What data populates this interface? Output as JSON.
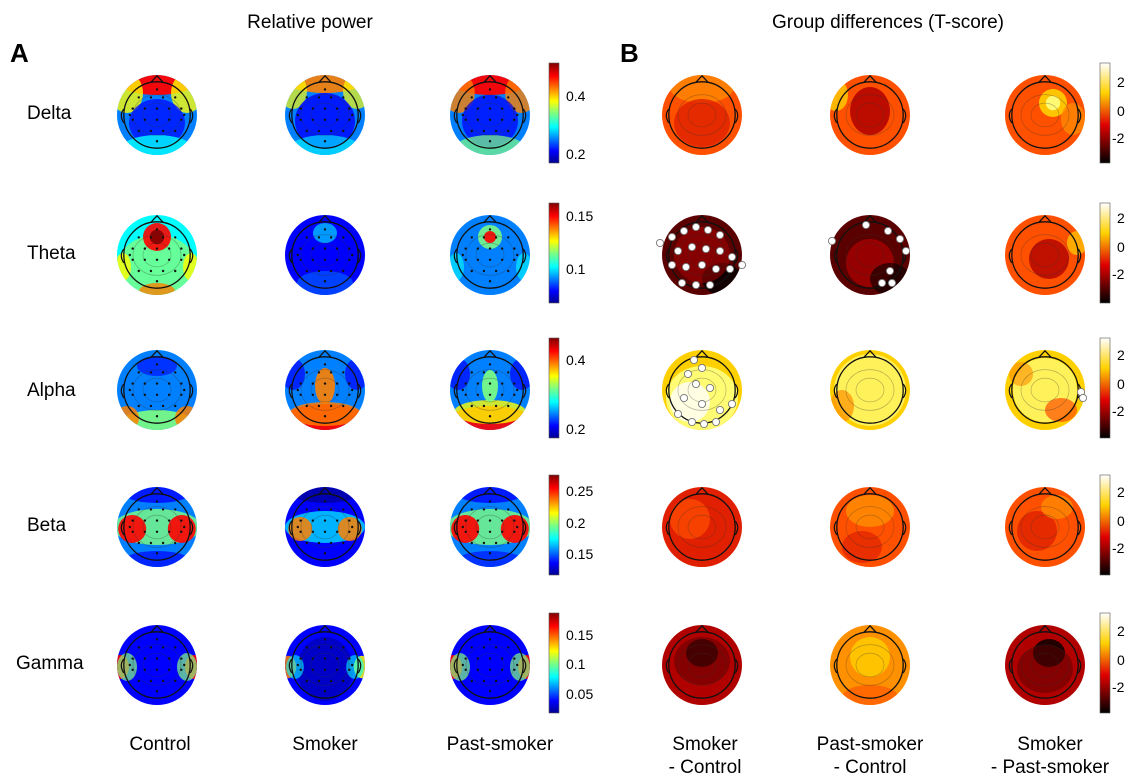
{
  "panel_a": {
    "letter": "A",
    "title": "Relative power",
    "columns": [
      "Control",
      "Smoker",
      "Past-smoker"
    ]
  },
  "panel_b": {
    "letter": "B",
    "title": "Group differences (T-score)",
    "columns": [
      {
        "line1": "Smoker",
        "line2": "- Control"
      },
      {
        "line1": "Past-smoker",
        "line2": "- Control"
      },
      {
        "line1": "Smoker",
        "line2": "- Past-smoker"
      }
    ],
    "colorbar_ticks": [
      "2",
      "0",
      "-2"
    ]
  },
  "rows": [
    {
      "band": "Delta",
      "colorbar_ticks": [
        "0.4",
        "0.2"
      ]
    },
    {
      "band": "Theta",
      "colorbar_ticks": [
        "0.15",
        "0.1"
      ]
    },
    {
      "band": "Alpha",
      "colorbar_ticks": [
        "0.4",
        "0.2"
      ]
    },
    {
      "band": "Beta",
      "colorbar_ticks": [
        "0.25",
        "0.2",
        "0.15"
      ]
    },
    {
      "band": "Gamma",
      "colorbar_ticks": [
        "0.15",
        "0.1",
        "0.05"
      ]
    }
  ],
  "colormaps": {
    "relative_power": "jet",
    "t_score": "hot"
  }
}
